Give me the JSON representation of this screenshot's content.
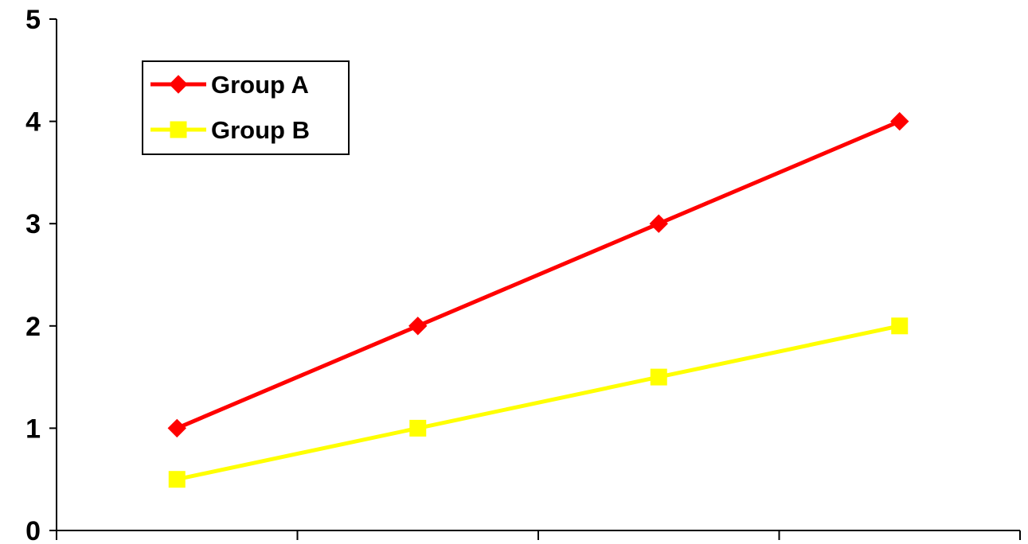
{
  "chart_data": {
    "type": "line",
    "title": "",
    "xlabel": "",
    "ylabel": "",
    "ylim": [
      0,
      5
    ],
    "y_ticks": [
      "0",
      "1",
      "2",
      "3",
      "4",
      "5"
    ],
    "x": [
      1,
      2,
      3,
      4
    ],
    "x_tick_labels": [],
    "grid": false,
    "legend_position": "top-left",
    "series": [
      {
        "name": "Group A",
        "values": [
          1,
          2,
          3,
          4
        ],
        "color": "#ff0000",
        "marker": "diamond"
      },
      {
        "name": "Group B",
        "values": [
          0.5,
          1,
          1.5,
          2
        ],
        "color": "#ffff00",
        "marker": "square"
      }
    ]
  }
}
